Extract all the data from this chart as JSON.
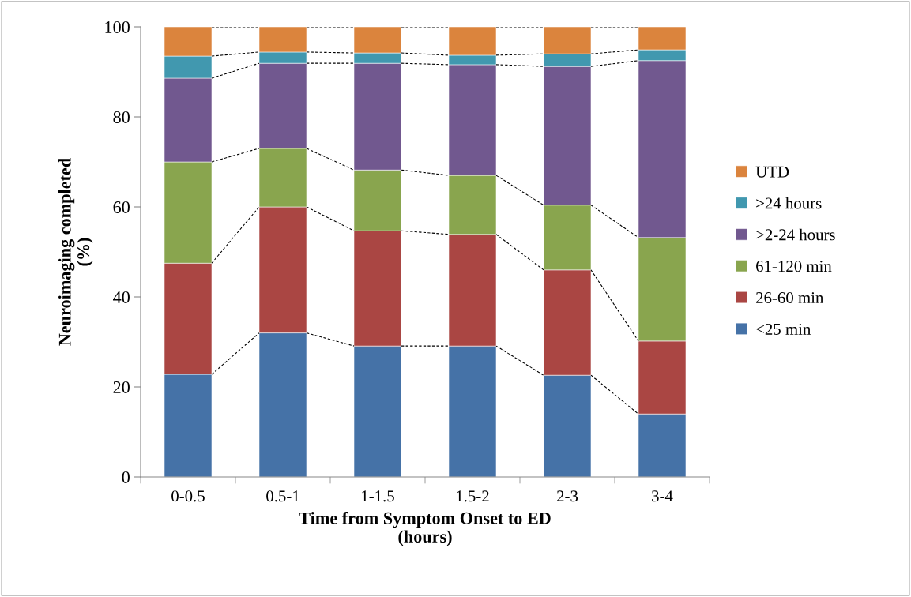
{
  "chart_data": {
    "type": "bar",
    "stacked": true,
    "xlabel": "Time from Symptom Onset to ED\n(hours)",
    "ylabel": "Neuroimaging completed\n(%)",
    "categories": [
      "0-0.5",
      "0.5-1",
      "1-1.5",
      "1.5-2",
      "2-3",
      "3-4"
    ],
    "series": [
      {
        "name": "<25 min",
        "color": "#4572a7",
        "values": [
          22.8,
          32.0,
          29.1,
          29.1,
          22.6,
          14.0
        ]
      },
      {
        "name": "26-60 min",
        "color": "#aa4643",
        "values": [
          24.7,
          28.0,
          25.6,
          24.8,
          23.4,
          16.2
        ]
      },
      {
        "name": "61-120 min",
        "color": "#89a54e",
        "values": [
          22.5,
          13.0,
          13.5,
          13.1,
          14.4,
          23.0
        ]
      },
      {
        "name": ">2-24 hours",
        "color": "#71588f",
        "values": [
          18.6,
          18.9,
          23.7,
          24.6,
          30.8,
          39.3
        ]
      },
      {
        "name": ">24 hours",
        "color": "#4198af",
        "values": [
          4.9,
          2.5,
          2.3,
          2.1,
          2.8,
          2.4
        ]
      },
      {
        "name": "UTD",
        "color": "#db843d",
        "values": [
          6.5,
          5.6,
          5.8,
          6.3,
          6.0,
          5.1
        ]
      }
    ],
    "ylim": [
      0,
      100
    ],
    "yticks": [
      0,
      20,
      40,
      60,
      80,
      100
    ],
    "grid": false,
    "legend": "right"
  }
}
